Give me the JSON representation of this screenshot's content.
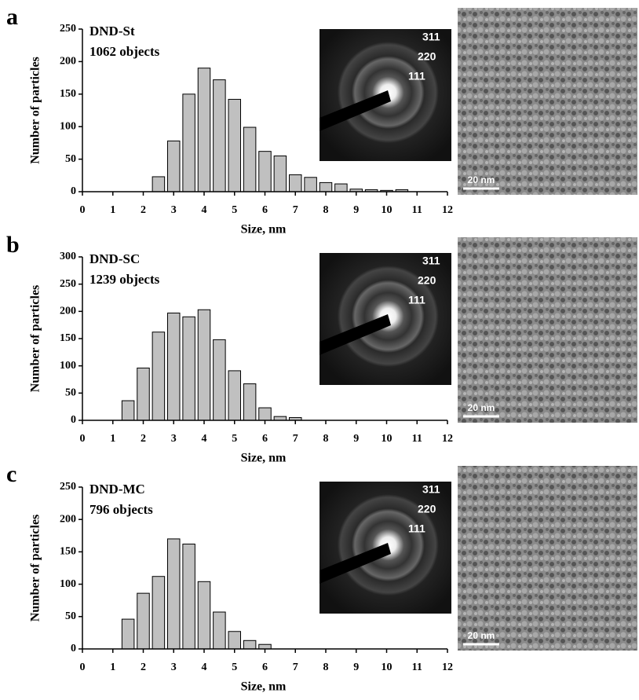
{
  "chart_data": [
    {
      "type": "bar",
      "panel": "a",
      "annotations": [
        "DND-St",
        "1062 objects"
      ],
      "diffraction_labels": [
        "311",
        "220",
        "111"
      ],
      "scale_bar": "20 nm",
      "x_label": "Size, nm",
      "y_label": "Number of particles",
      "color": "#c0c0c0",
      "x": [
        2.5,
        3,
        3.5,
        4,
        4.5,
        5,
        5.5,
        6,
        6.5,
        7,
        7.5,
        8,
        8.5,
        9,
        9.5,
        10,
        10.5
      ],
      "values": [
        23,
        78,
        150,
        190,
        172,
        142,
        99,
        62,
        55,
        26,
        22,
        14,
        12,
        4,
        3,
        2,
        3
      ],
      "xlim": [
        0,
        12
      ],
      "xticks": [
        0,
        1,
        2,
        3,
        4,
        5,
        6,
        7,
        8,
        9,
        10,
        11,
        12
      ],
      "ylim": [
        0,
        250
      ],
      "yticks": [
        0,
        50,
        100,
        150,
        200,
        250
      ]
    },
    {
      "type": "bar",
      "panel": "b",
      "annotations": [
        "DND-SC",
        "1239 objects"
      ],
      "diffraction_labels": [
        "311",
        "220",
        "111"
      ],
      "scale_bar": "20 nm",
      "x_label": "Size, nm",
      "y_label": "Number of particles",
      "color": "#c0c0c0",
      "x": [
        1.5,
        2,
        2.5,
        3,
        3.5,
        4,
        4.5,
        5,
        5.5,
        6,
        6.5,
        7
      ],
      "values": [
        36,
        96,
        162,
        197,
        190,
        203,
        148,
        91,
        67,
        23,
        7,
        5
      ],
      "xlim": [
        0,
        12
      ],
      "xticks": [
        0,
        1,
        2,
        3,
        4,
        5,
        6,
        7,
        8,
        9,
        10,
        11,
        12
      ],
      "ylim": [
        0,
        300
      ],
      "yticks": [
        0,
        50,
        100,
        150,
        200,
        250,
        300
      ]
    },
    {
      "type": "bar",
      "panel": "c",
      "annotations": [
        "DND-MC",
        "796 objects"
      ],
      "diffraction_labels": [
        "311",
        "220",
        "111"
      ],
      "scale_bar": "20 nm",
      "x_label": "Size, nm",
      "y_label": "Number of particles",
      "color": "#c0c0c0",
      "x": [
        1.5,
        2,
        2.5,
        3,
        3.5,
        4,
        4.5,
        5,
        5.5,
        6
      ],
      "values": [
        46,
        86,
        112,
        170,
        162,
        104,
        57,
        27,
        13,
        7
      ],
      "xlim": [
        0,
        12
      ],
      "xticks": [
        0,
        1,
        2,
        3,
        4,
        5,
        6,
        7,
        8,
        9,
        10,
        11,
        12
      ],
      "ylim": [
        0,
        250
      ],
      "yticks": [
        0,
        50,
        100,
        150,
        200,
        250
      ]
    }
  ]
}
